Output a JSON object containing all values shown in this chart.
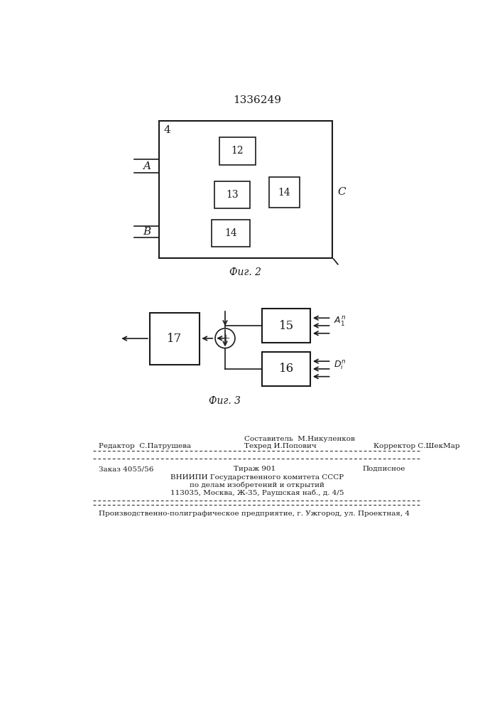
{
  "title": "1336249",
  "bg_color": "#ffffff",
  "line_color": "#1a1a1a",
  "fig2_label": "Фиг. 2",
  "fig3_label": "Фиг. 3",
  "footer_line1_left": "Редактор  С.Патрушева",
  "footer_sestavitel": "Составитель  М.Никуленков",
  "footer_tehred": "Техред И.Попович",
  "footer_korrektor": "Корректор С.ШекМар",
  "footer_zakaz": "Заказ 4055/56",
  "footer_tirazh": "Тираж 901",
  "footer_podpisnoe": "Подписное",
  "footer_vniip1": "ВНИИПИ Государственного комитета СССР",
  "footer_vniip2": "по делам изобретений и открытий",
  "footer_vniip3": "113035, Москва, Ж-35, Раушская наб., д. 4/5",
  "footer_bottom": "Производственно-полиграфическое предприятие, г. Ужгород, ул. Проектная, 4"
}
